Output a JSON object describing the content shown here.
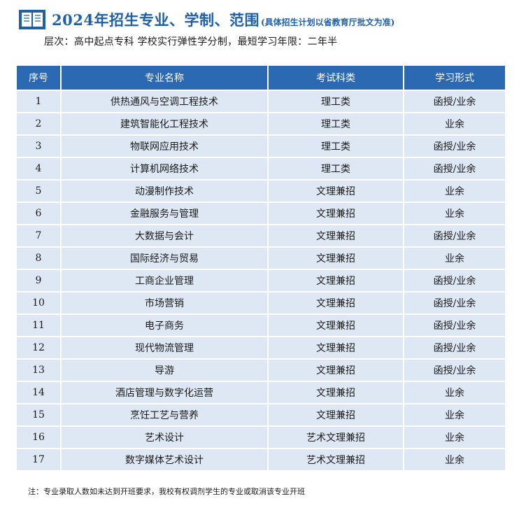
{
  "header": {
    "title": "2024年招生专业、学制、范围",
    "note": "(具体招生计划以省教育厅批文为准)",
    "subtitle": "层次：高中起点专科  学校实行弹性学分制，最短学习年限：二年半"
  },
  "table": {
    "columns": [
      "序号",
      "专业名称",
      "考试科类",
      "学习形式"
    ],
    "rows": [
      [
        "1",
        "供热通风与空调工程技术",
        "理工类",
        "函授/业余"
      ],
      [
        "2",
        "建筑智能化工程技术",
        "理工类",
        "业余"
      ],
      [
        "3",
        "物联网应用技术",
        "理工类",
        "函授/业余"
      ],
      [
        "4",
        "计算机网络技术",
        "理工类",
        "函授/业余"
      ],
      [
        "5",
        "动漫制作技术",
        "文理兼招",
        "业余"
      ],
      [
        "6",
        "金融服务与管理",
        "文理兼招",
        "业余"
      ],
      [
        "7",
        "大数据与会计",
        "文理兼招",
        "函授/业余"
      ],
      [
        "8",
        "国际经济与贸易",
        "文理兼招",
        "业余"
      ],
      [
        "9",
        "工商企业管理",
        "文理兼招",
        "函授/业余"
      ],
      [
        "10",
        "市场营销",
        "文理兼招",
        "函授/业余"
      ],
      [
        "11",
        "电子商务",
        "文理兼招",
        "函授/业余"
      ],
      [
        "12",
        "现代物流管理",
        "文理兼招",
        "函授/业余"
      ],
      [
        "13",
        "导游",
        "文理兼招",
        "函授/业余"
      ],
      [
        "14",
        "酒店管理与数字化运营",
        "文理兼招",
        "业余"
      ],
      [
        "15",
        "烹饪工艺与营养",
        "文理兼招",
        "业余"
      ],
      [
        "16",
        "艺术设计",
        "艺术文理兼招",
        "业余"
      ],
      [
        "17",
        "数字媒体艺术设计",
        "艺术文理兼招",
        "业余"
      ]
    ]
  },
  "footnote": "注：专业录取人数如未达到开班要求，我校有权调剂学生的专业或取消该专业开班",
  "colors": {
    "accent": "#2b69b3",
    "title": "#1f5fa6",
    "row_bg": "#dde8f4"
  },
  "icons": {
    "title_icon": "open-book-icon"
  }
}
